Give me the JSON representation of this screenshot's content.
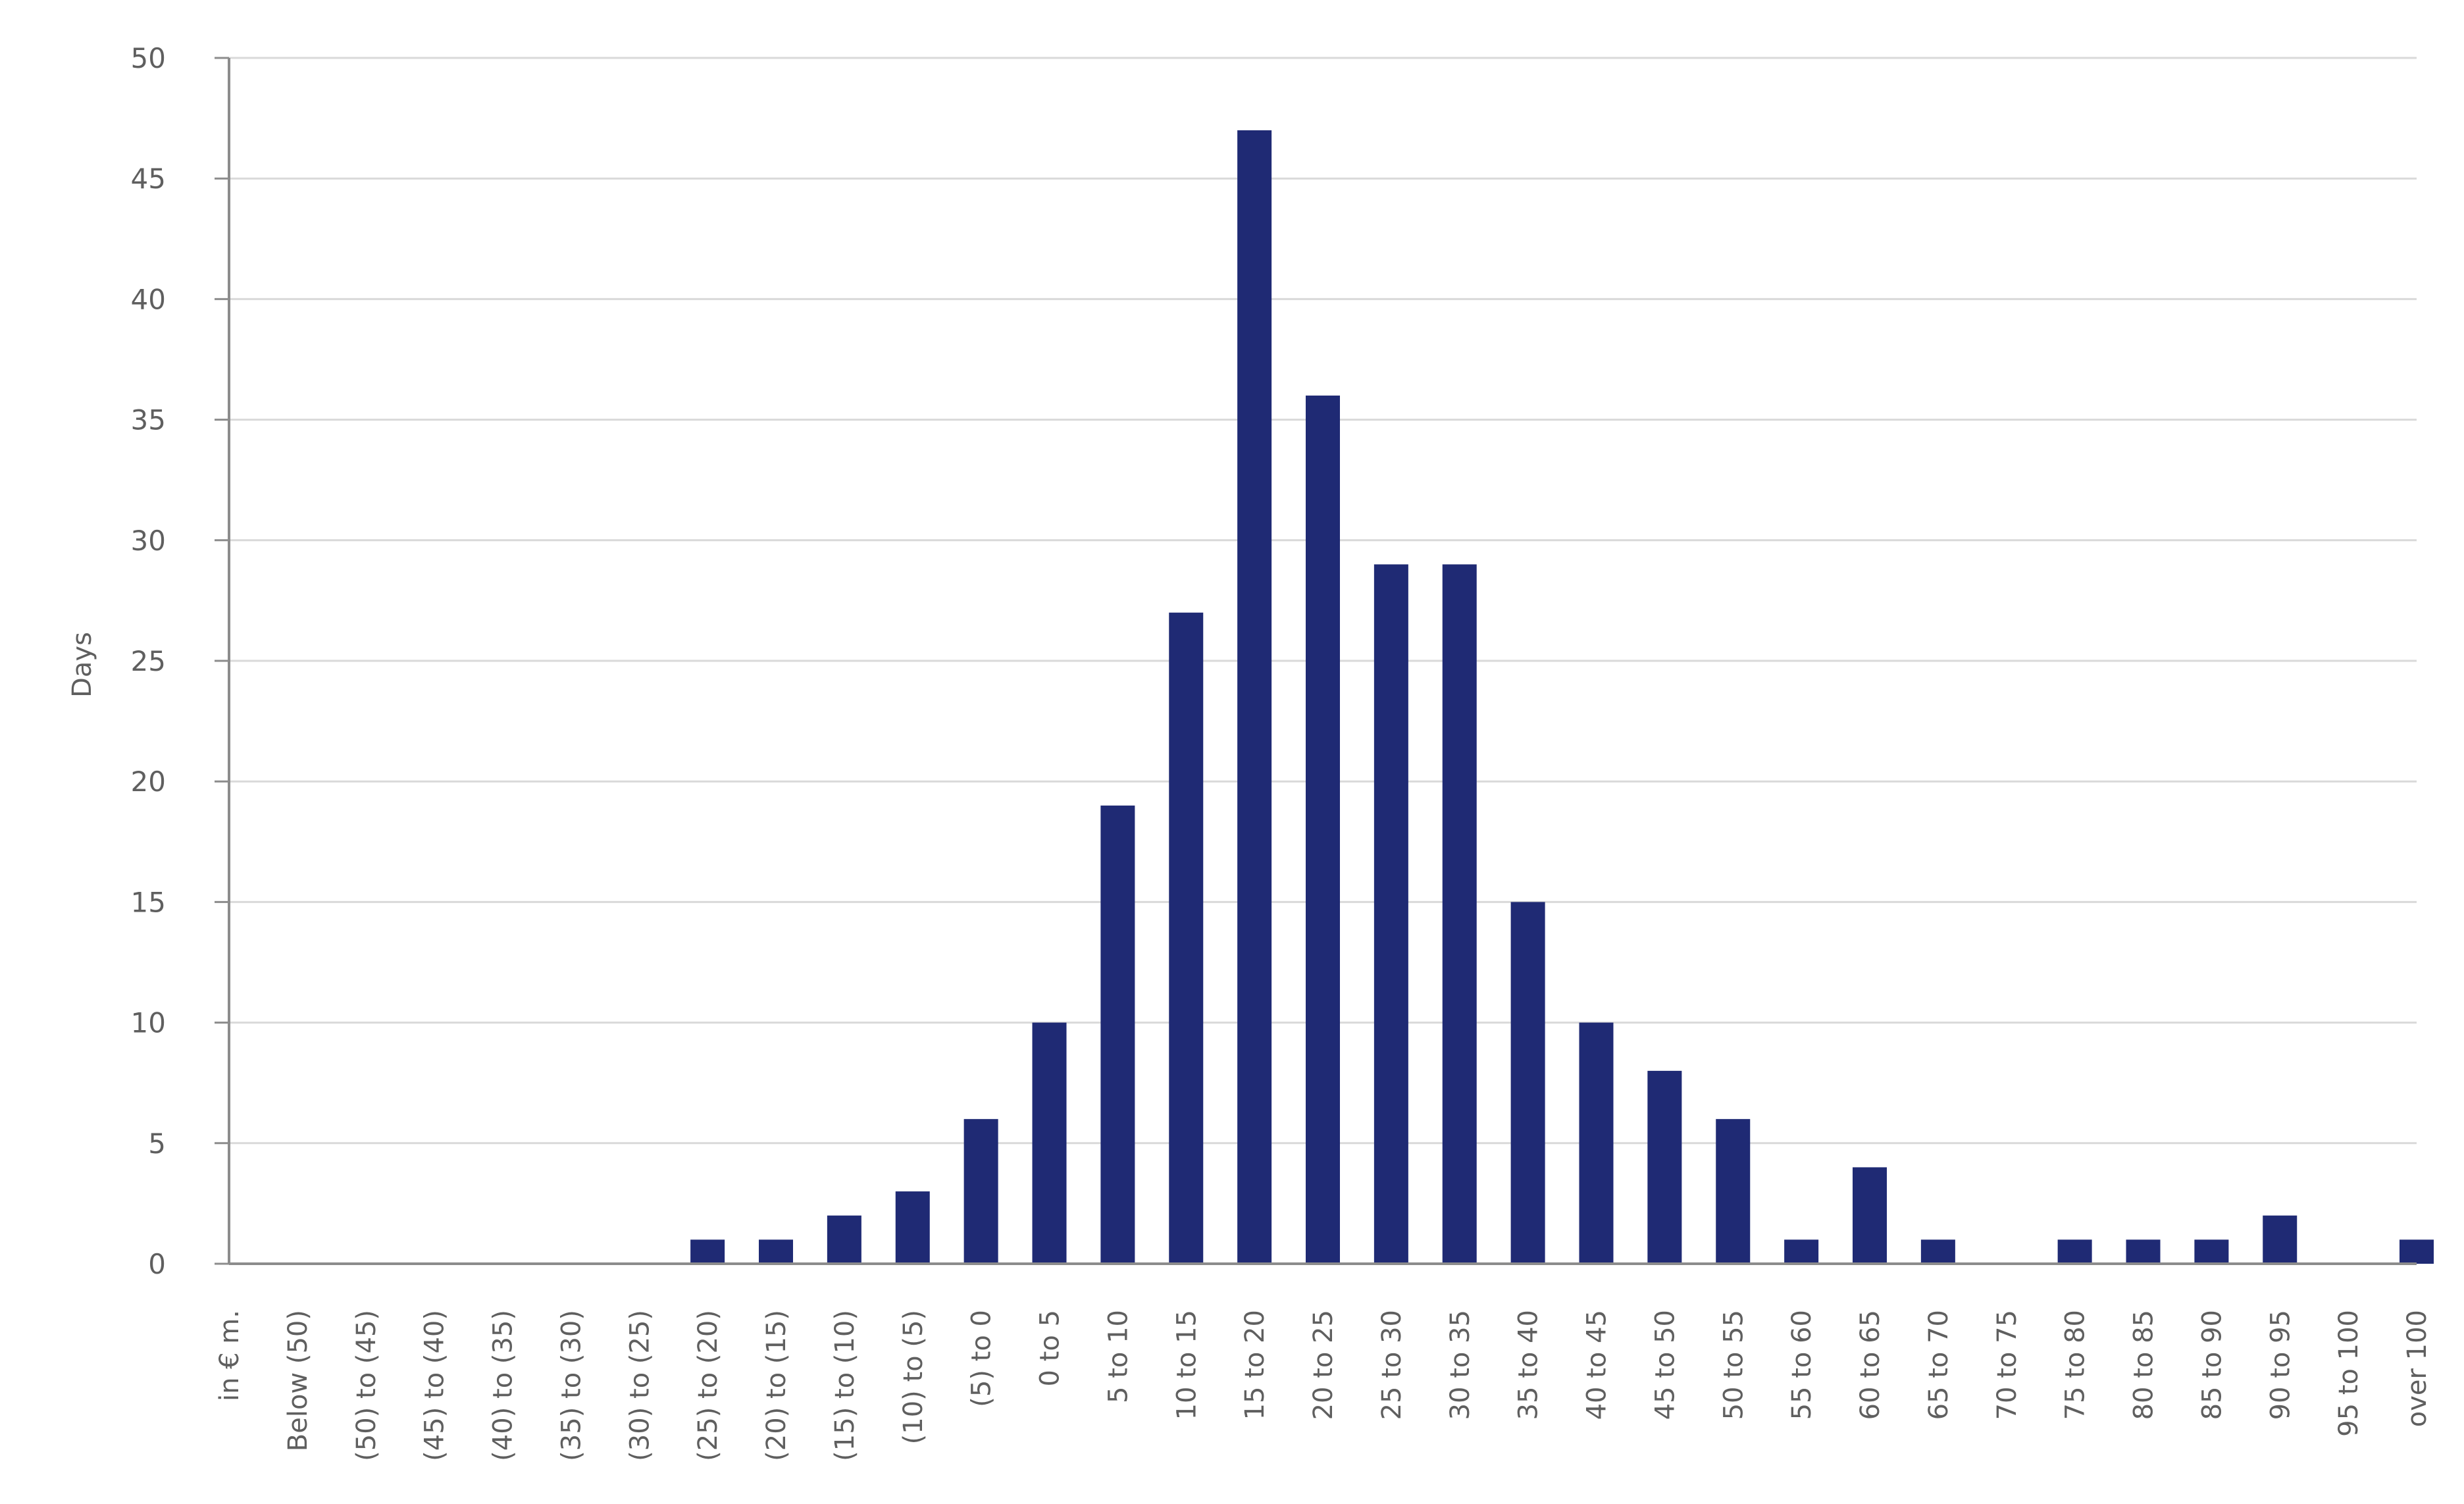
{
  "chart_data": {
    "type": "bar",
    "title": "",
    "xlabel": "",
    "ylabel": "Days",
    "ylim": [
      0,
      50
    ],
    "yticks": [
      0,
      5,
      10,
      15,
      20,
      25,
      30,
      35,
      40,
      45,
      50
    ],
    "grid": true,
    "legend": "none",
    "bar_color": "#1f2a74",
    "categories": [
      "in € m.",
      "Below (50)",
      "(50) to (45)",
      "(45) to (40)",
      "(40) to (35)",
      "(35) to (30)",
      "(30) to (25)",
      "(25) to (20)",
      "(20) to (15)",
      "(15) to (10)",
      "(10) to (5)",
      "(5) to 0",
      "0 to 5",
      "5 to 10",
      "10 to 15",
      "15 to 20",
      "20 to 25",
      "25 to 30",
      "30 to 35",
      "35 to 40",
      "40 to 45",
      "45 to 50",
      "50 to 55",
      "55 to 60",
      "60 to 65",
      "65 to 70",
      "70 to 75",
      "75 to 80",
      "80 to 85",
      "85 to 90",
      "90 to 95",
      "95 to 100",
      "over 100"
    ],
    "values": [
      null,
      0,
      0,
      0,
      0,
      0,
      0,
      1,
      1,
      2,
      3,
      6,
      10,
      19,
      27,
      47,
      36,
      29,
      29,
      15,
      10,
      8,
      6,
      1,
      4,
      1,
      0,
      1,
      1,
      1,
      2,
      0,
      1
    ]
  }
}
